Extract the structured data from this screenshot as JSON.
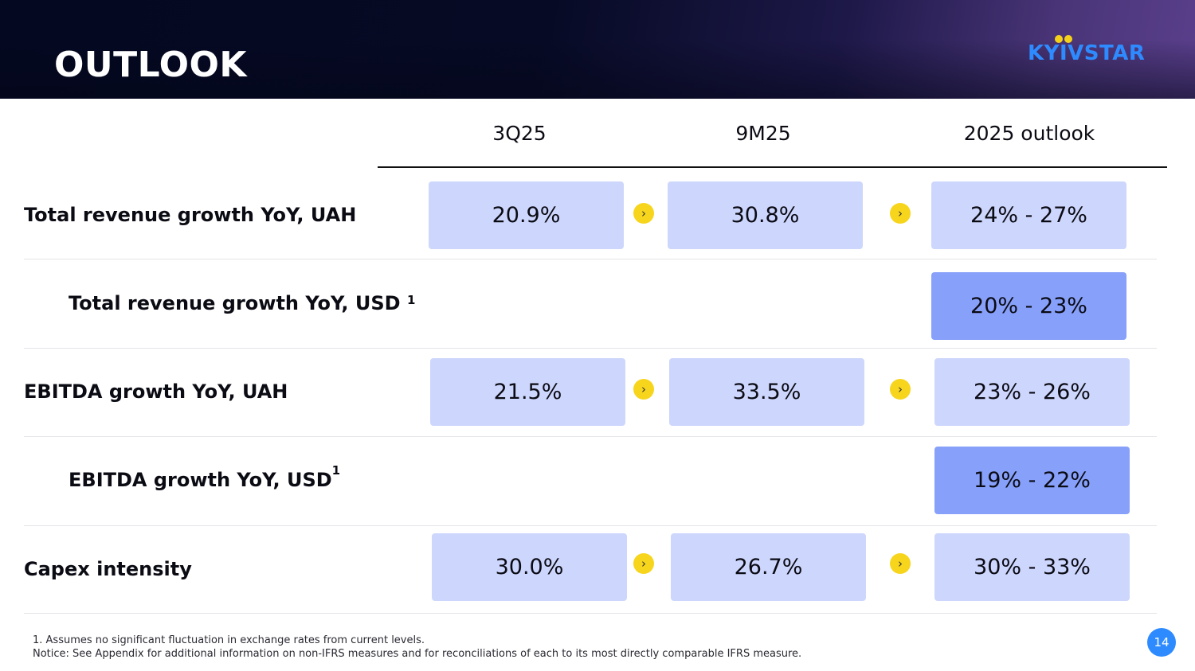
{
  "header": {
    "title": "OUTLOOK",
    "logo_text": "KYIVSTAR",
    "colors": {
      "background": "#040820",
      "logo_blue": "#2e8bff",
      "logo_yellow": "#f5d21a"
    }
  },
  "table": {
    "columns": [
      "3Q25",
      "9M25",
      "2025 outlook"
    ],
    "rows": [
      {
        "label": "Total revenue growth YoY, UAH",
        "q": "20.9%",
        "ytd": "30.8%",
        "outlook": "24% - 27%"
      },
      {
        "label": "Total revenue growth YoY, USD",
        "footnote_ref": "1",
        "outlook": "20% - 23%"
      },
      {
        "label": "EBITDA growth YoY, UAH",
        "q": "21.5%",
        "ytd": "33.5%",
        "outlook": "23% - 26%"
      },
      {
        "label": "EBITDA growth YoY, USD",
        "footnote_ref": "1",
        "outlook": "19% - 22%"
      },
      {
        "label": "Capex intensity",
        "q": "30.0%",
        "ytd": "26.7%",
        "outlook": "30% - 33%"
      }
    ],
    "colors": {
      "cell_light": "#cdd6fc",
      "cell_dark": "#87a0fa",
      "arrow": "#f7d51d"
    },
    "arrow_icon": "chevron-right-icon"
  },
  "footnotes": [
    "1. Assumes no significant fluctuation in exchange rates from current levels.",
    "Notice: See Appendix for additional information on non-IFRS measures and for reconciliations of each to its most directly comparable IFRS measure."
  ],
  "page_number": "14"
}
